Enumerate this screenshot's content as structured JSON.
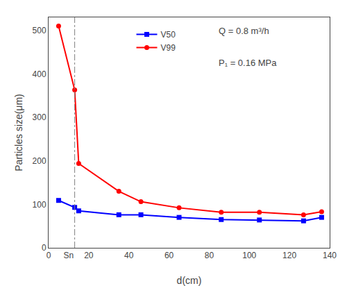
{
  "chart_data": {
    "type": "line",
    "xlabel": "d(cm)",
    "ylabel": "Particles size(μm)",
    "x": [
      5,
      13,
      15,
      35,
      46,
      65,
      86,
      105,
      127,
      136
    ],
    "series": [
      {
        "name": "V50",
        "color": "#0000FF",
        "marker": "square",
        "line_style": "solid",
        "values": [
          109,
          93,
          85,
          76,
          76,
          70,
          65,
          64,
          62,
          70
        ]
      },
      {
        "name": "V99",
        "color": "#FF0000",
        "marker": "circle",
        "line_style": "solid",
        "values": [
          510,
          363,
          194,
          130,
          106,
          92,
          82,
          82,
          76,
          83
        ]
      }
    ],
    "vlines": [
      {
        "x": 13,
        "color": "gray",
        "line_style": "dashdot"
      }
    ],
    "xlim": [
      0,
      140
    ],
    "ylim": [
      0,
      530
    ],
    "xticks": [
      0,
      {
        "value": 10,
        "label": "Sn"
      },
      20,
      40,
      60,
      80,
      100,
      120,
      140
    ],
    "yticks": [
      0,
      100,
      200,
      300,
      400,
      500
    ],
    "annotations": [
      "Q = 0.8 m³/h",
      "P₁ = 0.16 MPa"
    ],
    "legend": "upper center",
    "grid": false
  }
}
